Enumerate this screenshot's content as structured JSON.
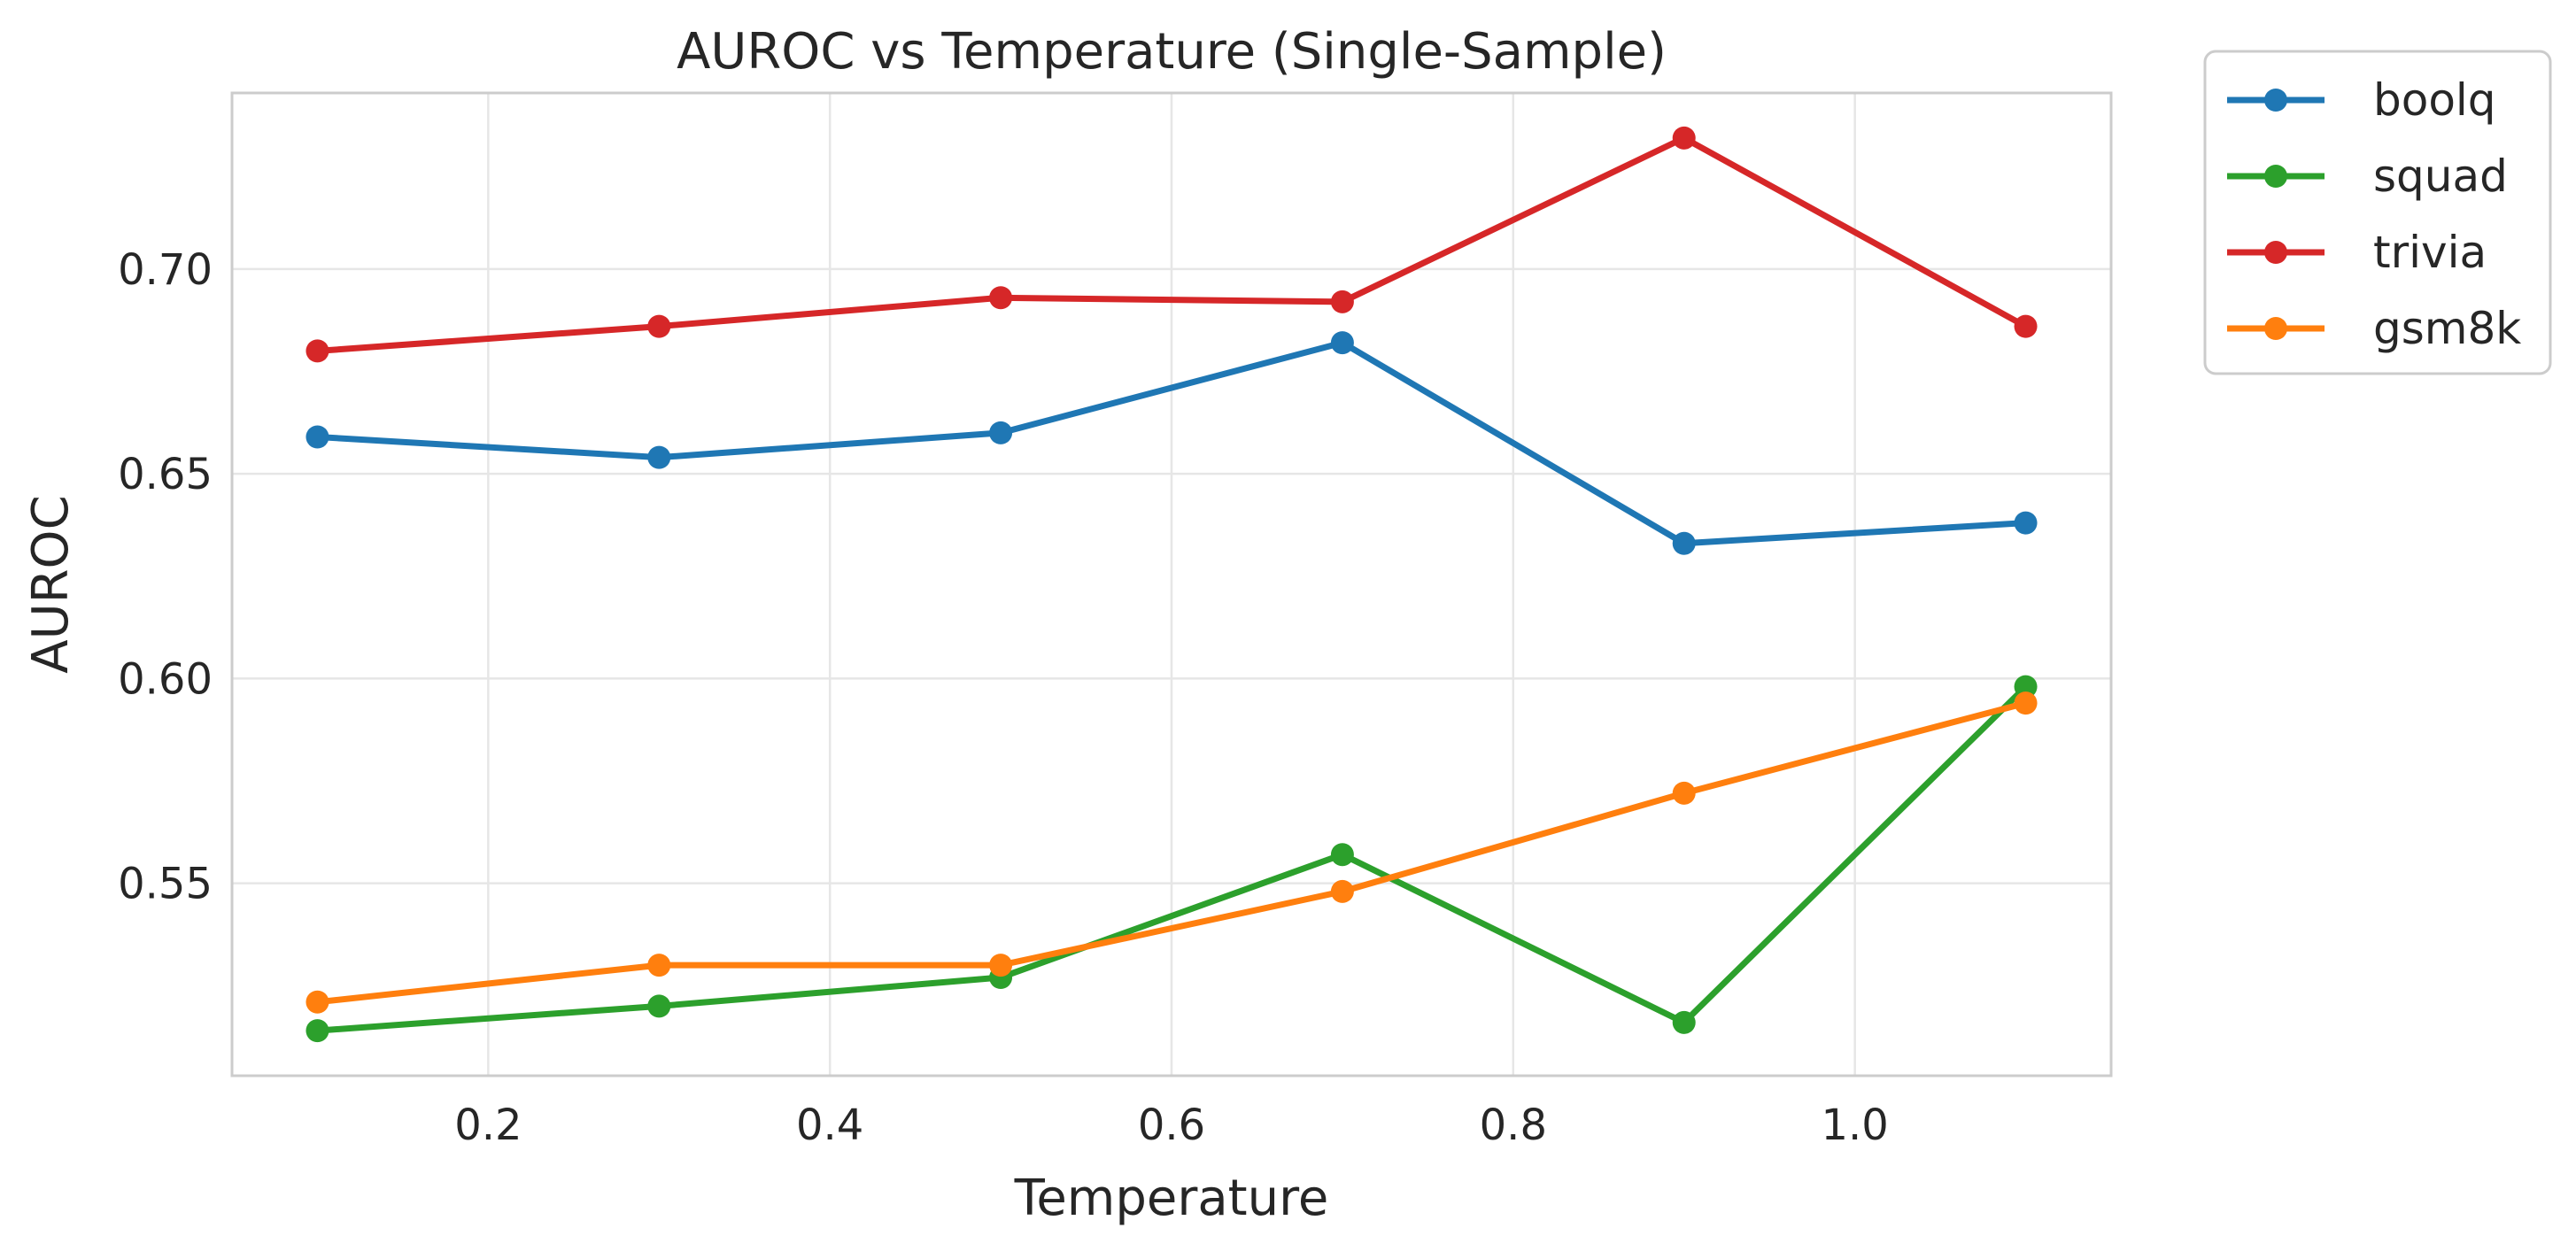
{
  "chart_data": {
    "type": "line",
    "title": "AUROC vs Temperature (Single-Sample)",
    "xlabel": "Temperature",
    "ylabel": "AUROC",
    "x": [
      0.1,
      0.3,
      0.5,
      0.7,
      0.9,
      1.1
    ],
    "xlim": [
      0.05,
      1.15
    ],
    "ylim": [
      0.503,
      0.743
    ],
    "xticks": [
      0.2,
      0.4,
      0.6,
      0.8,
      1.0
    ],
    "xtick_labels": [
      "0.2",
      "0.4",
      "0.6",
      "0.8",
      "1.0"
    ],
    "yticks": [
      0.55,
      0.6,
      0.65,
      0.7
    ],
    "ytick_labels": [
      "0.55",
      "0.60",
      "0.65",
      "0.70"
    ],
    "grid": true,
    "legend_position": "outside top-right",
    "series": [
      {
        "name": "boolq",
        "color": "#1f77b4",
        "values": [
          0.659,
          0.654,
          0.66,
          0.682,
          0.633,
          0.638
        ]
      },
      {
        "name": "squad",
        "color": "#2ca02c",
        "values": [
          0.514,
          0.52,
          0.527,
          0.557,
          0.516,
          0.598
        ]
      },
      {
        "name": "trivia",
        "color": "#d62728",
        "values": [
          0.68,
          0.686,
          0.693,
          0.692,
          0.732,
          0.686
        ]
      },
      {
        "name": "gsm8k",
        "color": "#ff7f0e",
        "values": [
          0.521,
          0.53,
          0.53,
          0.548,
          0.572,
          0.594
        ]
      }
    ]
  }
}
